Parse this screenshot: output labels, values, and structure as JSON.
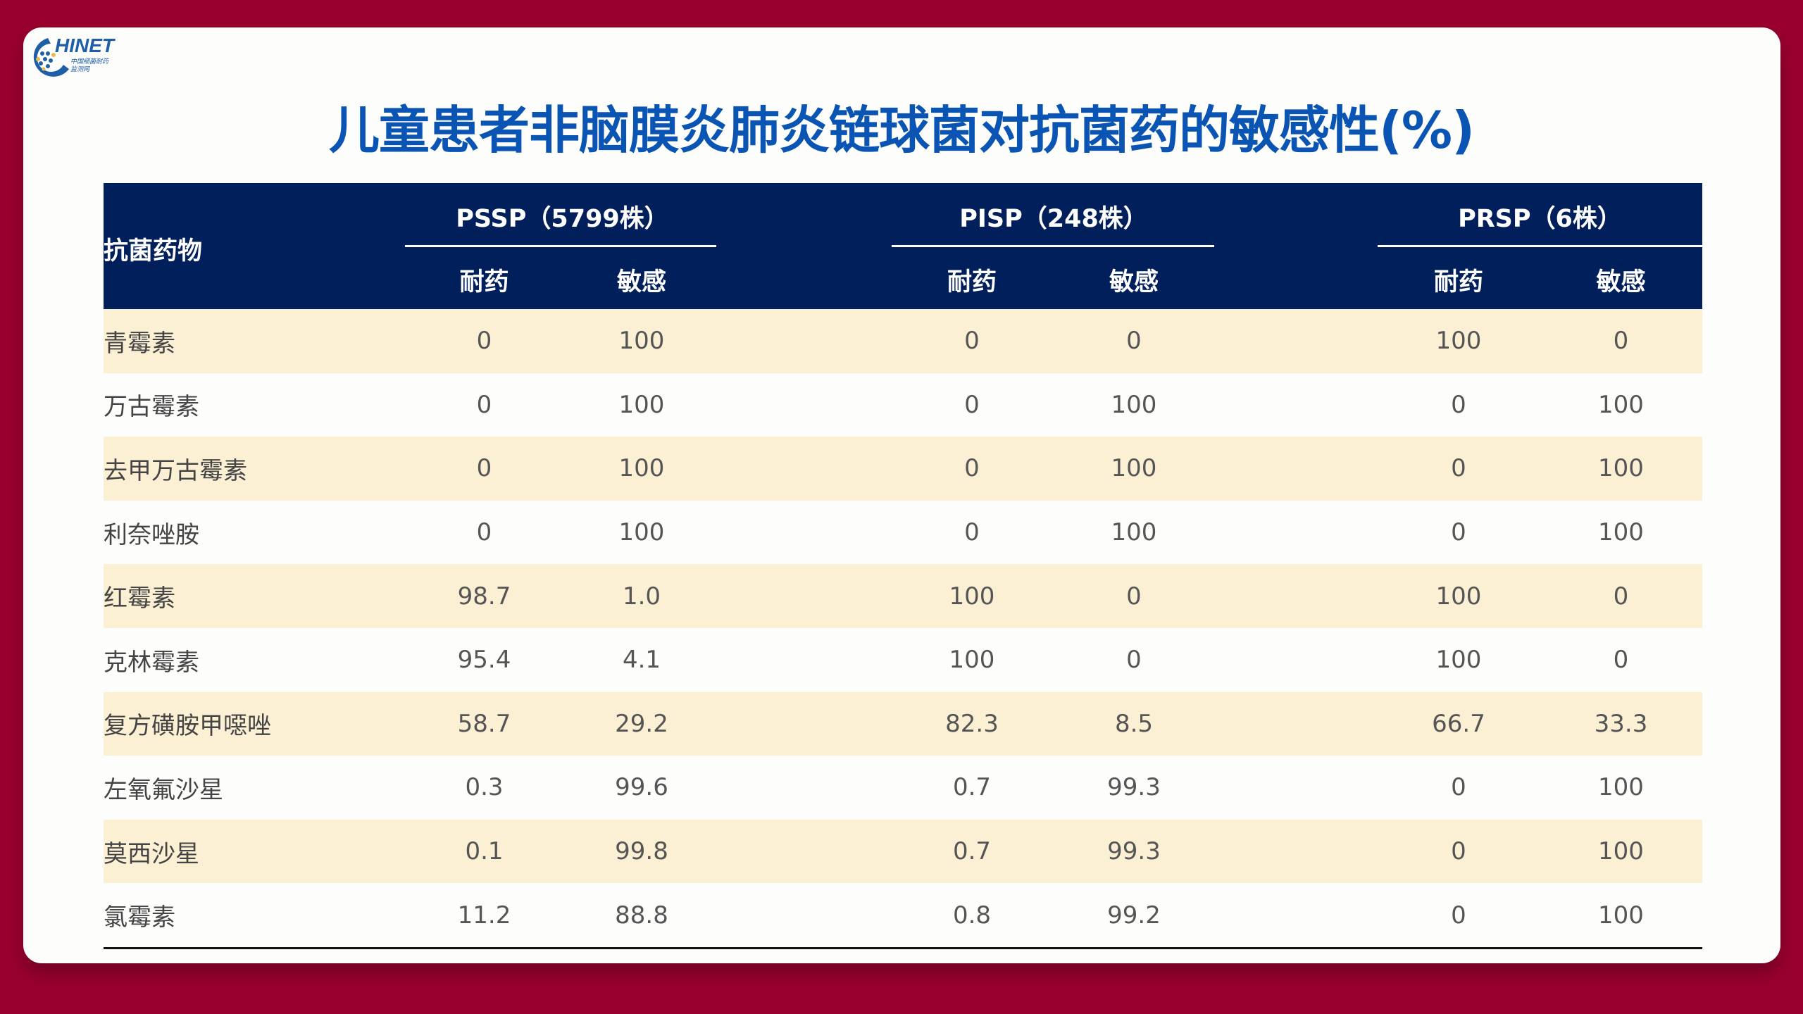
{
  "logo": {
    "text": "CHINET",
    "subtitle": "中国细菌耐药监测网"
  },
  "title": "儿童患者非脑膜炎肺炎链球菌对抗菌药的敏感性(%)",
  "table": {
    "header_drug": "抗菌药物",
    "groups": [
      {
        "label": "PSSP（5799株）",
        "sub": [
          "耐药",
          "敏感"
        ]
      },
      {
        "label": "PISP（248株）",
        "sub": [
          "耐药",
          "敏感"
        ]
      },
      {
        "label": "PRSP（6株）",
        "sub": [
          "耐药",
          "敏感"
        ]
      }
    ],
    "rows": [
      [
        "青霉素",
        "0",
        "100",
        "0",
        "0",
        "100",
        "0"
      ],
      [
        "万古霉素",
        "0",
        "100",
        "0",
        "100",
        "0",
        "100"
      ],
      [
        "去甲万古霉素",
        "0",
        "100",
        "0",
        "100",
        "0",
        "100"
      ],
      [
        "利奈唑胺",
        "0",
        "100",
        "0",
        "100",
        "0",
        "100"
      ],
      [
        "红霉素",
        "98.7",
        "1.0",
        "100",
        "0",
        "100",
        "0"
      ],
      [
        "克林霉素",
        "95.4",
        "4.1",
        "100",
        "0",
        "100",
        "0"
      ],
      [
        "复方磺胺甲噁唑",
        "58.7",
        "29.2",
        "82.3",
        "8.5",
        "66.7",
        "33.3"
      ],
      [
        "左氧氟沙星",
        "0.3",
        "99.6",
        "0.7",
        "99.3",
        "0",
        "100"
      ],
      [
        "莫西沙星",
        "0.1",
        "99.8",
        "0.7",
        "99.3",
        "0",
        "100"
      ],
      [
        "氯霉素",
        "11.2",
        "88.8",
        "0.8",
        "99.2",
        "0",
        "100"
      ]
    ]
  },
  "colors": {
    "background": "#99002e",
    "header": "#011f5b",
    "title": "#0a55b4",
    "stripe": "#fcf0d4"
  }
}
